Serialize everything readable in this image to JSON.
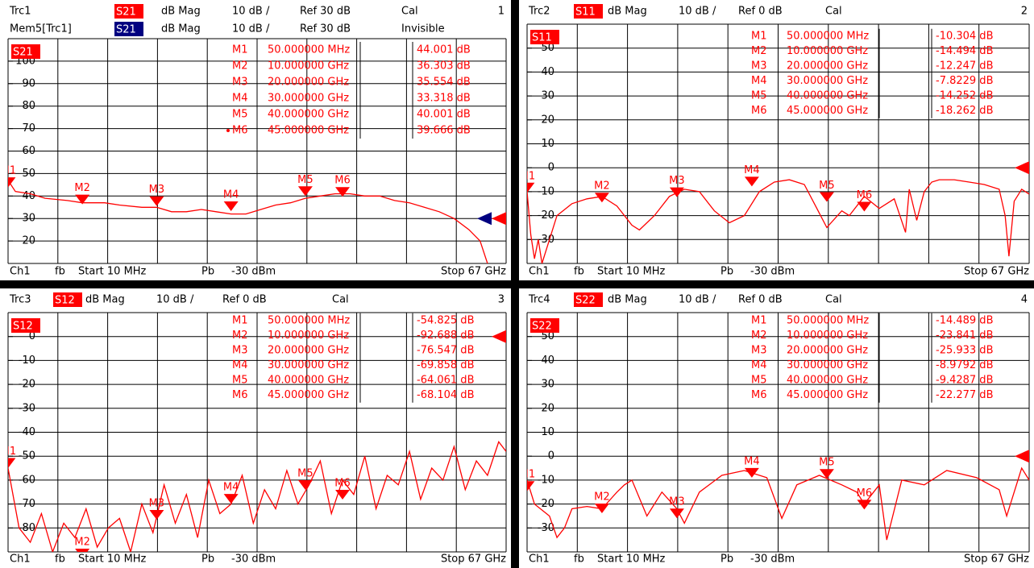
{
  "chart_data": [
    {
      "type": "line",
      "trace": "Trc1",
      "param": "S21",
      "format": "dB Mag",
      "scale": "10 dB /",
      "ref_label": "Ref 30 dB",
      "cal": "Cal",
      "index": "1",
      "ref": 30,
      "color": "#ff0000",
      "param_bg": "#ff0000",
      "memory": {
        "label": "Mem5[Trc1]",
        "param": "S21",
        "format": "dB Mag",
        "scale": "10 dB /",
        "ref_label": "Ref 30 dB",
        "status": "Invisible",
        "ref": 30,
        "color": "#000080"
      },
      "xlim": [
        0.01,
        67
      ],
      "ylim": [
        10,
        110
      ],
      "yticks": [
        20,
        30,
        40,
        50,
        60,
        70,
        80,
        90,
        100
      ],
      "grid": true,
      "active_marker": 5,
      "x": [
        0.01,
        1,
        3,
        5,
        8,
        10,
        13,
        15,
        18,
        20,
        22,
        24,
        26,
        28,
        30,
        32,
        34,
        36,
        38,
        40,
        42,
        44,
        46,
        48,
        50,
        52,
        54,
        56,
        58,
        60,
        62,
        63.5,
        64.5
      ],
      "values": [
        47,
        42,
        41,
        39,
        38,
        37,
        37,
        36,
        35,
        35,
        33,
        33,
        34,
        33,
        32,
        32,
        34,
        36,
        37,
        39,
        40,
        41,
        41,
        40,
        40,
        38,
        37,
        35,
        33,
        30,
        25,
        20,
        10
      ],
      "markers": {
        "names": [
          "M1",
          "M2",
          "M3",
          "M4",
          "M5",
          "M6"
        ],
        "x": [
          0.05,
          10,
          20,
          30,
          40,
          45
        ],
        "x_labels": [
          "50.000000 MHz",
          "10.000000 GHz",
          "20.000000 GHz",
          "30.000000 GHz",
          "40.000000 GHz",
          "45.000000 GHz"
        ],
        "values": [
          44.001,
          36.303,
          35.554,
          33.318,
          40.001,
          39.666
        ],
        "value_labels": [
          "44.001 dB",
          "36.303 dB",
          "35.554 dB",
          "33.318 dB",
          "40.001 dB",
          "39.666 dB"
        ]
      },
      "footer": {
        "channel": "Ch1",
        "fb": "fb",
        "start": "Start 10 MHz",
        "pb": "Pb",
        "power": "-30 dBm",
        "stop": "Stop 67 GHz"
      }
    },
    {
      "type": "line",
      "trace": "Trc2",
      "param": "S11",
      "format": "dB Mag",
      "scale": "10 dB /",
      "ref_label": "Ref 0 dB",
      "cal": "Cal",
      "index": "2",
      "ref": 0,
      "color": "#ff0000",
      "param_bg": "#ff0000",
      "xlim": [
        0.01,
        67
      ],
      "ylim": [
        -40,
        60
      ],
      "yticks": [
        -30,
        -20,
        -10,
        0,
        10,
        20,
        30,
        40,
        50
      ],
      "grid": true,
      "x": [
        0.01,
        0.5,
        1,
        1.5,
        2,
        3,
        4,
        6,
        8,
        10,
        12,
        14,
        15,
        17,
        19,
        21,
        23,
        25,
        27,
        29,
        31,
        33,
        35,
        37,
        38.5,
        40,
        42,
        43,
        45,
        47,
        49,
        50.5,
        51,
        52,
        53,
        54,
        55,
        57,
        59,
        61,
        63,
        63.8,
        64.3,
        65,
        66,
        67
      ],
      "values": [
        -10,
        -28,
        -38,
        -30,
        -40,
        -30,
        -20,
        -15,
        -13,
        -12,
        -16,
        -24,
        -26,
        -20,
        -12,
        -9,
        -10,
        -18,
        -23,
        -20,
        -10,
        -6,
        -5,
        -7,
        -16,
        -25,
        -18,
        -20,
        -12,
        -17,
        -13,
        -27,
        -9,
        -22,
        -10,
        -6,
        -5,
        -5,
        -6,
        -7,
        -9,
        -20,
        -37,
        -14,
        -9,
        -11
      ],
      "markers": {
        "names": [
          "M1",
          "M2",
          "M3",
          "M4",
          "M5",
          "M6"
        ],
        "x": [
          0.05,
          10,
          20,
          30,
          40,
          45
        ],
        "x_labels": [
          "50.000000 MHz",
          "10.000000 GHz",
          "20.000000 GHz",
          "30.000000 GHz",
          "40.000000 GHz",
          "45.000000 GHz"
        ],
        "values": [
          -10.304,
          -14.494,
          -12.247,
          -7.8229,
          -14.252,
          -18.262
        ],
        "value_labels": [
          "-10.304 dB",
          "-14.494 dB",
          "-12.247 dB",
          "-7.8229 dB",
          "-14.252 dB",
          "-18.262 dB"
        ]
      },
      "footer": {
        "channel": "Ch1",
        "fb": "fb",
        "start": "Start 10 MHz",
        "pb": "Pb",
        "power": "-30 dBm",
        "stop": "Stop 67 GHz"
      }
    },
    {
      "type": "line",
      "trace": "Trc3",
      "param": "S12",
      "format": "dB Mag",
      "scale": "10 dB /",
      "ref_label": "Ref 0 dB",
      "cal": "Cal",
      "index": "3",
      "ref": 0,
      "color": "#ff0000",
      "param_bg": "#ff0000",
      "xlim": [
        0.01,
        67
      ],
      "ylim": [
        -90,
        10
      ],
      "yticks": [
        -80,
        -70,
        -60,
        -50,
        -40,
        -30,
        -20,
        -10,
        0
      ],
      "grid": true,
      "x": [
        0.01,
        1.5,
        3,
        4.5,
        6,
        7.5,
        9,
        10.5,
        12,
        13.5,
        15,
        16.5,
        18,
        19.5,
        21,
        22.5,
        24,
        25.5,
        27,
        28.5,
        30,
        31.5,
        33,
        34.5,
        36,
        37.5,
        39,
        40.5,
        42,
        43.5,
        45,
        46.5,
        48,
        49.5,
        51,
        52.5,
        54,
        55.5,
        57,
        58.5,
        60,
        61.5,
        63,
        64.5,
        66,
        67
      ],
      "values": [
        -55,
        -80,
        -86,
        -74,
        -90,
        -78,
        -84,
        -72,
        -88,
        -80,
        -76,
        -90,
        -70,
        -82,
        -62,
        -78,
        -66,
        -84,
        -60,
        -74,
        -70,
        -58,
        -78,
        -64,
        -72,
        -56,
        -70,
        -62,
        -52,
        -74,
        -60,
        -66,
        -50,
        -72,
        -58,
        -62,
        -48,
        -68,
        -55,
        -60,
        -46,
        -64,
        -52,
        -58,
        -44,
        -48
      ],
      "markers": {
        "names": [
          "M1",
          "M2",
          "M3",
          "M4",
          "M5",
          "M6"
        ],
        "x": [
          0.05,
          10,
          20,
          30,
          40,
          45
        ],
        "x_labels": [
          "50.000000 MHz",
          "10.000000 GHz",
          "20.000000 GHz",
          "30.000000 GHz",
          "40.000000 GHz",
          "45.000000 GHz"
        ],
        "values": [
          -54.825,
          -92.688,
          -76.547,
          -69.858,
          -64.061,
          -68.104
        ],
        "value_labels": [
          "-54.825 dB",
          "-92.688 dB",
          "-76.547 dB",
          "-69.858 dB",
          "-64.061 dB",
          "-68.104 dB"
        ]
      },
      "footer": {
        "channel": "Ch1",
        "fb": "fb",
        "start": "Start 10 MHz",
        "pb": "Pb",
        "power": "-30 dBm",
        "stop": "Stop 67 GHz"
      }
    },
    {
      "type": "line",
      "trace": "Trc4",
      "param": "S22",
      "format": "dB Mag",
      "scale": "10 dB /",
      "ref_label": "Ref 0 dB",
      "cal": "Cal",
      "index": "4",
      "ref": 0,
      "color": "#ff0000",
      "param_bg": "#ff0000",
      "xlim": [
        0.01,
        67
      ],
      "ylim": [
        -40,
        60
      ],
      "yticks": [
        -30,
        -20,
        -10,
        0,
        10,
        20,
        30,
        40,
        50
      ],
      "grid": true,
      "x": [
        0.01,
        1,
        3,
        4,
        5,
        6,
        8,
        10,
        12,
        13,
        14,
        16,
        18,
        20,
        21,
        23,
        26,
        29,
        32,
        34,
        36,
        39,
        42,
        44,
        45,
        47,
        48,
        50,
        53,
        56,
        60,
        63,
        64,
        66,
        67
      ],
      "values": [
        -10,
        -20,
        -25,
        -34,
        -30,
        -22,
        -21,
        -22,
        -15,
        -12,
        -10,
        -25,
        -15,
        -22,
        -28,
        -15,
        -8,
        -6,
        -9,
        -26,
        -12,
        -8,
        -12,
        -15,
        -20,
        -12,
        -35,
        -10,
        -12,
        -6,
        -9,
        -14,
        -25,
        -5,
        -10
      ],
      "markers": {
        "names": [
          "M1",
          "M2",
          "M3",
          "M4",
          "M5",
          "M6"
        ],
        "x": [
          0.05,
          10,
          20,
          30,
          40,
          45
        ],
        "x_labels": [
          "50.000000 MHz",
          "10.000000 GHz",
          "20.000000 GHz",
          "30.000000 GHz",
          "40.000000 GHz",
          "45.000000 GHz"
        ],
        "values": [
          -14.489,
          -23.841,
          -25.933,
          -8.9792,
          -9.4287,
          -22.277
        ],
        "value_labels": [
          "-14.489 dB",
          "-23.841 dB",
          "-25.933 dB",
          "-8.9792 dB",
          "-9.4287 dB",
          "-22.277 dB"
        ]
      },
      "footer": {
        "channel": "Ch1",
        "fb": "fb",
        "start": "Start 10 MHz",
        "pb": "Pb",
        "power": "-30 dBm",
        "stop": "Stop 67 GHz"
      }
    }
  ]
}
